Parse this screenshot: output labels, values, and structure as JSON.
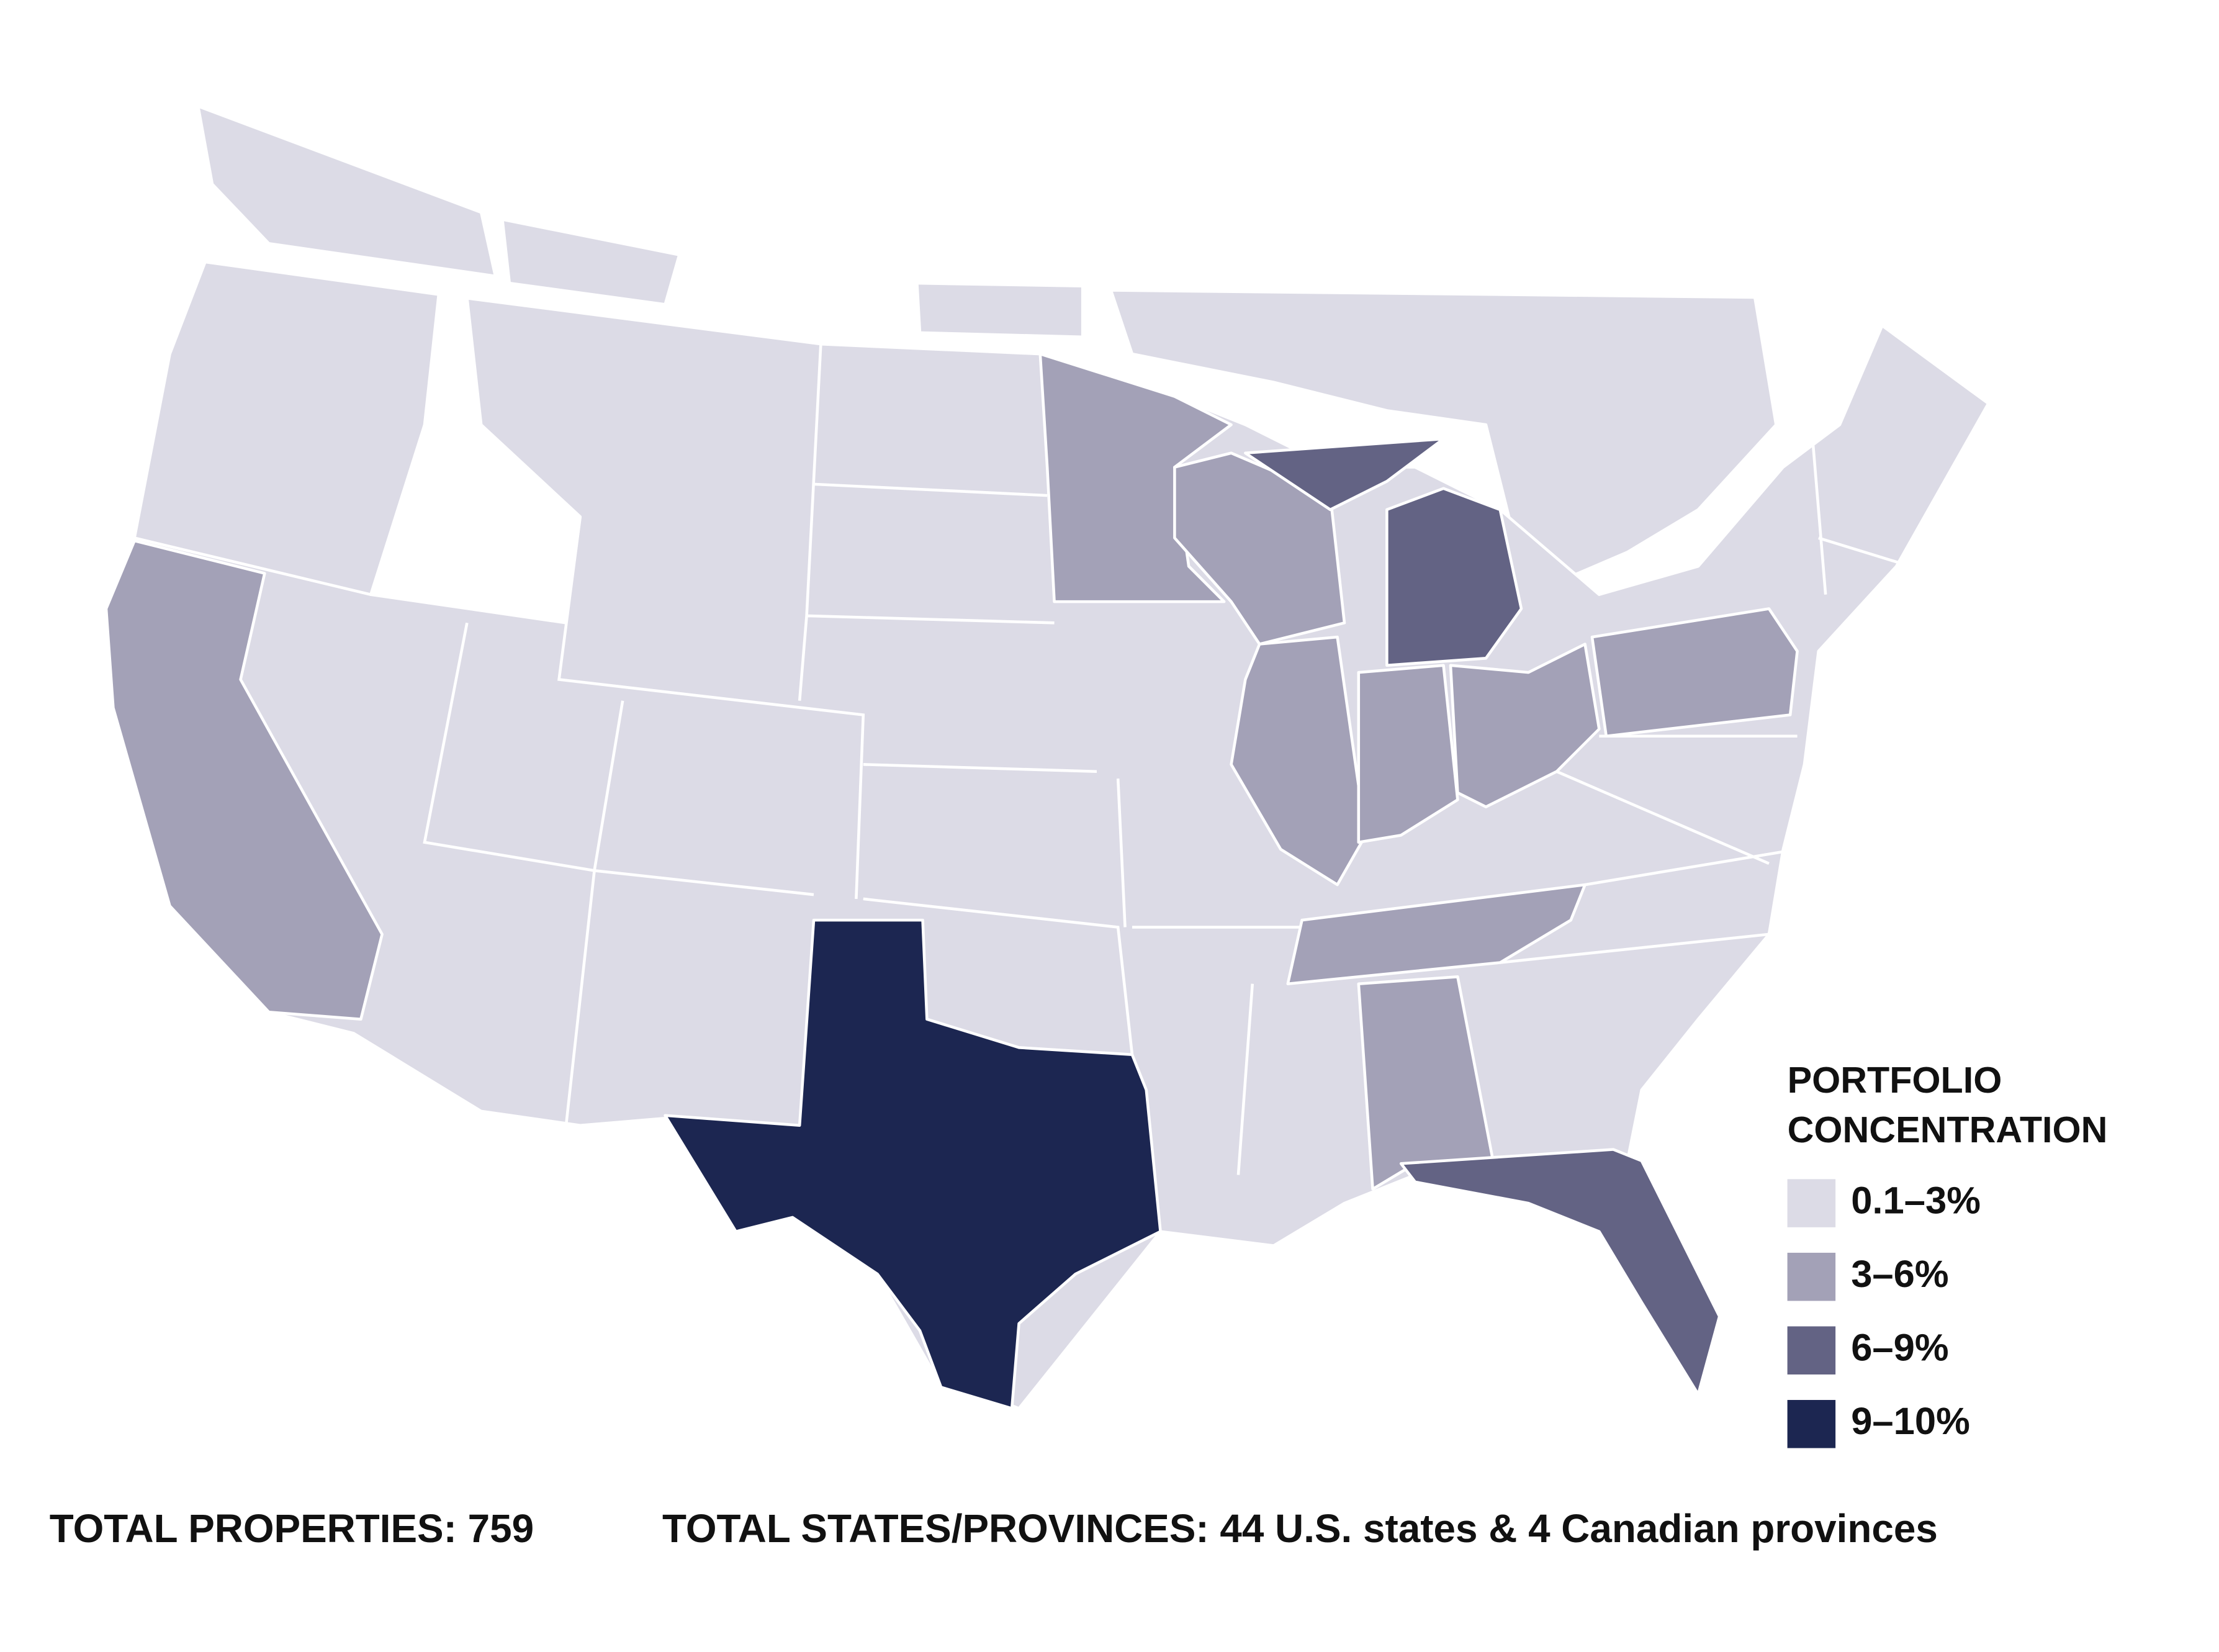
{
  "legend": {
    "title": [
      "PORTFOLIO",
      "CONCENTRATION"
    ],
    "items": [
      {
        "label": "0.1–3%",
        "color": "#dcdbe6"
      },
      {
        "label": "3–6%",
        "color": "#a3a1b7"
      },
      {
        "label": "6–9%",
        "color": "#636384"
      },
      {
        "label": "9–10%",
        "color": "#1c2651"
      }
    ]
  },
  "footer": {
    "total_properties": "TOTAL PROPERTIES: 759",
    "total_states": "TOTAL STATES/PROVINCES: 44 U.S. states & 4 Canadian provinces"
  }
}
